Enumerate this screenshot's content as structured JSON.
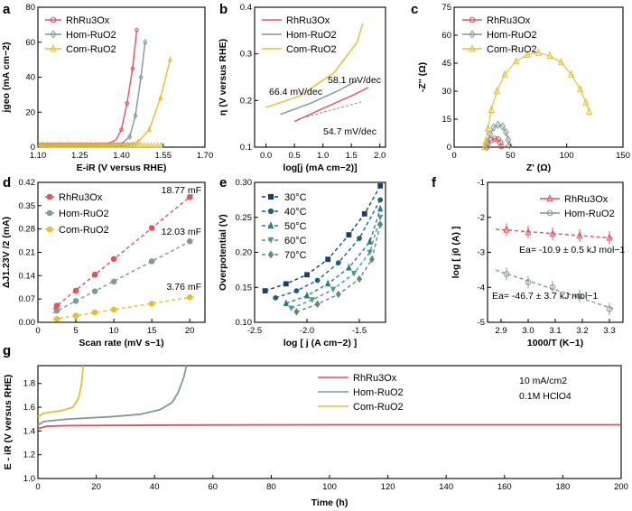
{
  "colors": {
    "RhRu3Ox": "#e8505b",
    "HomRuO2": "#7f9a93",
    "ComRuO2": "#e5c02a"
  },
  "chart_data": [
    {
      "panel": "a",
      "type": "line",
      "xlabel": "E-iR (V versus RHE)",
      "ylabel": "jgeo (mA cm−2)",
      "xlim": [
        1.1,
        1.7
      ],
      "ylim": [
        0,
        80
      ],
      "xticks": [
        "1.10",
        "1.25",
        "1.40",
        "1.55",
        "1.70"
      ],
      "yticks": [
        "0",
        "20",
        "40",
        "60",
        "80"
      ],
      "series": [
        {
          "name": "RhRu3Ox",
          "marker": "circle",
          "points": [
            [
              1.1,
              1.5
            ],
            [
              1.2,
              1.6
            ],
            [
              1.3,
              1.8
            ],
            [
              1.35,
              2
            ],
            [
              1.38,
              4
            ],
            [
              1.4,
              10
            ],
            [
              1.42,
              25
            ],
            [
              1.44,
              45
            ],
            [
              1.455,
              67
            ]
          ]
        },
        {
          "name": "Hom-RuO2",
          "marker": "diamond",
          "points": [
            [
              1.1,
              1.2
            ],
            [
              1.2,
              1.3
            ],
            [
              1.3,
              1.4
            ],
            [
              1.4,
              2
            ],
            [
              1.43,
              6
            ],
            [
              1.45,
              18
            ],
            [
              1.47,
              40
            ],
            [
              1.485,
              60
            ]
          ]
        },
        {
          "name": "Com-RuO2",
          "marker": "triangle",
          "points": [
            [
              1.1,
              1.0
            ],
            [
              1.2,
              1.1
            ],
            [
              1.3,
              1.2
            ],
            [
              1.4,
              1.5
            ],
            [
              1.46,
              3
            ],
            [
              1.5,
              10
            ],
            [
              1.54,
              28
            ],
            [
              1.575,
              50
            ]
          ]
        }
      ]
    },
    {
      "panel": "b",
      "type": "line",
      "xlabel": "log[j (mA cm−2)]",
      "ylabel": "η (V versus RHE)",
      "xlim": [
        -0.2,
        2.1
      ],
      "ylim": [
        0.1,
        0.4
      ],
      "xticks": [
        "0.0",
        "0.5",
        "1.0",
        "1.5",
        "2.0"
      ],
      "yticks": [
        "0.1",
        "0.2",
        "0.3",
        "0.4"
      ],
      "series": [
        {
          "name": "RhRu3Ox",
          "points": [
            [
              0.5,
              0.155
            ],
            [
              1.0,
              0.183
            ],
            [
              1.5,
              0.21
            ],
            [
              1.8,
              0.228
            ]
          ]
        },
        {
          "name": "Hom-RuO2",
          "points": [
            [
              0.25,
              0.17
            ],
            [
              0.8,
              0.195
            ],
            [
              1.3,
              0.223
            ],
            [
              1.6,
              0.243
            ]
          ]
        },
        {
          "name": "Com-RuO2",
          "points": [
            [
              0.0,
              0.185
            ],
            [
              0.6,
              0.21
            ],
            [
              1.2,
              0.26
            ],
            [
              1.6,
              0.325
            ],
            [
              1.7,
              0.365
            ]
          ]
        }
      ],
      "annotations": [
        "66.4 mV/dec",
        "58.1 mV/dec",
        "54.7 mV/dec"
      ]
    },
    {
      "panel": "c",
      "type": "scatter",
      "xlabel": "Z' (Ω)",
      "ylabel": "-Z'' (Ω)",
      "xlim": [
        0,
        150
      ],
      "ylim": [
        0,
        75
      ],
      "xticks": [
        "0",
        "50",
        "100",
        "150"
      ],
      "yticks": [
        "0",
        "15",
        "30",
        "45",
        "60",
        "75"
      ],
      "series": [
        {
          "name": "RhRu3Ox",
          "marker": "circle",
          "points": [
            [
              29,
              0
            ],
            [
              30,
              2
            ],
            [
              33,
              3.8
            ],
            [
              36,
              4.6
            ],
            [
              39,
              4.2
            ],
            [
              41,
              2.5
            ],
            [
              42,
              0.5
            ]
          ]
        },
        {
          "name": "Hom-RuO2",
          "marker": "diamond",
          "points": [
            [
              29,
              0
            ],
            [
              30,
              3
            ],
            [
              32,
              7
            ],
            [
              35,
              10.5
            ],
            [
              39,
              12
            ],
            [
              43,
              11
            ],
            [
              46,
              8
            ],
            [
              48,
              4
            ],
            [
              49,
              1
            ]
          ]
        },
        {
          "name": "Com-RuO2",
          "marker": "triangle",
          "points": [
            [
              27,
              0
            ],
            [
              28,
              3
            ],
            [
              30,
              10
            ],
            [
              33,
              20
            ],
            [
              38,
              30
            ],
            [
              45,
              39
            ],
            [
              55,
              46
            ],
            [
              65,
              49.5
            ],
            [
              75,
              50.5
            ],
            [
              85,
              49
            ],
            [
              95,
              45.5
            ],
            [
              104,
              39
            ],
            [
              112,
              31
            ],
            [
              117,
              24
            ],
            [
              120,
              19
            ]
          ]
        }
      ]
    },
    {
      "panel": "d",
      "type": "scatter",
      "xlabel": "Scan rate (mV s−1)",
      "ylabel": "ΔJ1.23V /2 (mA)",
      "xlim": [
        0,
        22
      ],
      "ylim": [
        0,
        0.42
      ],
      "xticks": [
        "0",
        "5",
        "10",
        "15",
        "20"
      ],
      "yticks": [
        "0.00",
        "0.07",
        "0.14",
        "0.21",
        "0.28",
        "0.35",
        "0.42"
      ],
      "series": [
        {
          "name": "RhRu3Ox",
          "points": [
            [
              2.5,
              0.05
            ],
            [
              5,
              0.095
            ],
            [
              7.5,
              0.143
            ],
            [
              10,
              0.19
            ],
            [
              15,
              0.283
            ],
            [
              20,
              0.376
            ]
          ],
          "label": "18.77 mF"
        },
        {
          "name": "Hom-RuO2",
          "points": [
            [
              2.5,
              0.035
            ],
            [
              5,
              0.064
            ],
            [
              7.5,
              0.093
            ],
            [
              10,
              0.122
            ],
            [
              15,
              0.183
            ],
            [
              20,
              0.243
            ]
          ],
          "label": "12.03 mF"
        },
        {
          "name": "Com-RuO2",
          "points": [
            [
              2.5,
              0.01
            ],
            [
              5,
              0.02
            ],
            [
              7.5,
              0.03
            ],
            [
              10,
              0.038
            ],
            [
              15,
              0.056
            ],
            [
              20,
              0.075
            ]
          ],
          "label": "3.76 mF"
        }
      ]
    },
    {
      "panel": "e",
      "type": "line",
      "xlabel": "log [ j (A cm−2) ]",
      "ylabel": "Overpotential (V)",
      "xlim": [
        -2.5,
        -1.25
      ],
      "ylim": [
        0.1,
        0.3
      ],
      "xticks": [
        "-2.5",
        "-2.0",
        "-1.5"
      ],
      "yticks": [
        "0.10",
        "0.15",
        "0.20",
        "0.25",
        "0.30"
      ],
      "series": [
        {
          "name": "30°C",
          "color": "#1c3f66",
          "marker": "square",
          "points": [
            [
              -2.4,
              0.145
            ],
            [
              -2.2,
              0.155
            ],
            [
              -2.0,
              0.168
            ],
            [
              -1.8,
              0.19
            ],
            [
              -1.6,
              0.225
            ],
            [
              -1.45,
              0.255
            ],
            [
              -1.3,
              0.295
            ]
          ]
        },
        {
          "name": "40°C",
          "color": "#1f5e7a",
          "marker": "circle",
          "points": [
            [
              -2.3,
              0.135
            ],
            [
              -2.1,
              0.145
            ],
            [
              -1.9,
              0.16
            ],
            [
              -1.7,
              0.185
            ],
            [
              -1.5,
              0.22
            ],
            [
              -1.3,
              0.275
            ]
          ]
        },
        {
          "name": "50°C",
          "color": "#2b7c86",
          "marker": "triangle",
          "points": [
            [
              -2.2,
              0.127
            ],
            [
              -2.0,
              0.138
            ],
            [
              -1.8,
              0.155
            ],
            [
              -1.6,
              0.178
            ],
            [
              -1.4,
              0.215
            ],
            [
              -1.3,
              0.262
            ]
          ]
        },
        {
          "name": "60°C",
          "color": "#469c91",
          "marker": "triangle-down",
          "points": [
            [
              -2.15,
              0.12
            ],
            [
              -1.95,
              0.132
            ],
            [
              -1.75,
              0.147
            ],
            [
              -1.55,
              0.17
            ],
            [
              -1.4,
              0.2
            ],
            [
              -1.3,
              0.25
            ]
          ]
        },
        {
          "name": "70°C",
          "color": "#5d8d76",
          "marker": "diamond",
          "points": [
            [
              -2.1,
              0.115
            ],
            [
              -1.9,
              0.126
            ],
            [
              -1.7,
              0.14
            ],
            [
              -1.5,
              0.162
            ],
            [
              -1.38,
              0.19
            ],
            [
              -1.3,
              0.24
            ]
          ]
        }
      ]
    },
    {
      "panel": "f",
      "type": "scatter",
      "xlabel": "1000/T (K−1)",
      "ylabel": "log [ j0 (A) ]",
      "xlim": [
        2.85,
        3.35
      ],
      "ylim": [
        -5,
        -1
      ],
      "xticks": [
        "2.9",
        "3.0",
        "3.1",
        "3.2",
        "3.3"
      ],
      "yticks": [
        "-1",
        "-2",
        "-3",
        "-4",
        "-5"
      ],
      "series": [
        {
          "name": "RhRu3Ox",
          "marker": "triangle",
          "points": [
            [
              2.92,
              -2.35
            ],
            [
              3.0,
              -2.42
            ],
            [
              3.09,
              -2.47
            ],
            [
              3.19,
              -2.52
            ],
            [
              3.3,
              -2.58
            ]
          ]
        },
        {
          "name": "Hom-RuO2",
          "marker": "circle",
          "points": [
            [
              2.92,
              -3.62
            ],
            [
              3.0,
              -3.85
            ],
            [
              3.09,
              -4.0
            ],
            [
              3.19,
              -4.25
            ],
            [
              3.3,
              -4.62
            ]
          ]
        }
      ],
      "annotations": [
        "Ea= -10.9 ± 0.5 kJ mol−1",
        "Ea= -46.7 ± 3.7 kJ mol−1"
      ]
    },
    {
      "panel": "g",
      "type": "line",
      "xlabel": "Time (h)",
      "ylabel": "E - iR (V versus RHE)",
      "xlim": [
        0,
        200
      ],
      "ylim": [
        1.0,
        1.95
      ],
      "xticks": [
        "0",
        "20",
        "40",
        "60",
        "80",
        "100",
        "120",
        "140",
        "160",
        "180",
        "200"
      ],
      "yticks": [
        "1.0",
        "1.2",
        "1.4",
        "1.6",
        "1.8"
      ],
      "series": [
        {
          "name": "RhRu3Ox",
          "points": [
            [
              0,
              1.42
            ],
            [
              3,
              1.44
            ],
            [
              10,
              1.445
            ],
            [
              50,
              1.45
            ],
            [
              100,
              1.452
            ],
            [
              150,
              1.452
            ],
            [
              200,
              1.452
            ]
          ]
        },
        {
          "name": "Hom-RuO2",
          "points": [
            [
              0,
              1.45
            ],
            [
              2,
              1.48
            ],
            [
              10,
              1.5
            ],
            [
              25,
              1.52
            ],
            [
              35,
              1.54
            ],
            [
              42,
              1.58
            ],
            [
              46,
              1.64
            ],
            [
              48,
              1.72
            ],
            [
              50,
              1.85
            ],
            [
              51,
              1.95
            ]
          ]
        },
        {
          "name": "Com-RuO2",
          "points": [
            [
              0,
              1.52
            ],
            [
              2,
              1.55
            ],
            [
              8,
              1.57
            ],
            [
              12,
              1.6
            ],
            [
              14,
              1.68
            ],
            [
              15,
              1.8
            ],
            [
              15.5,
              1.95
            ]
          ]
        }
      ],
      "annotations": [
        "10 mA/cm2",
        "0.1M HClO4"
      ]
    }
  ]
}
